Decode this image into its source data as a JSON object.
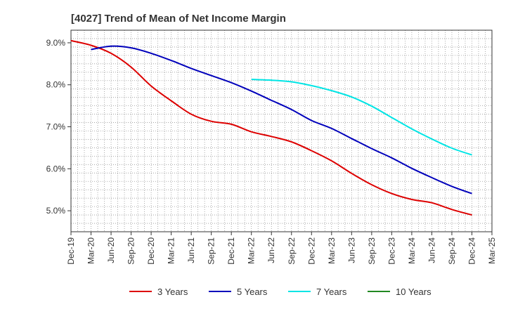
{
  "chart_data": {
    "type": "line",
    "title": "[4027]  Trend of Mean of Net Income Margin",
    "xlabel": "",
    "ylabel": "",
    "x_ticks": [
      "Dec-19",
      "Mar-20",
      "Jun-20",
      "Sep-20",
      "Dec-20",
      "Mar-21",
      "Jun-21",
      "Sep-21",
      "Dec-21",
      "Mar-22",
      "Jun-22",
      "Sep-22",
      "Dec-22",
      "Mar-23",
      "Jun-23",
      "Sep-23",
      "Dec-23",
      "Mar-24",
      "Jun-24",
      "Sep-24",
      "Dec-24",
      "Mar-25"
    ],
    "y_ticks": [
      "5.0%",
      "6.0%",
      "7.0%",
      "8.0%",
      "9.0%"
    ],
    "y_tick_values": [
      5.0,
      6.0,
      7.0,
      8.0,
      9.0
    ],
    "ylim": [
      4.5,
      9.3
    ],
    "grid": true,
    "legend_position": "bottom",
    "series": [
      {
        "name": "3 Years",
        "color": "#dd0000",
        "values": [
          [
            0,
            9.05
          ],
          [
            1,
            8.94
          ],
          [
            2,
            8.75
          ],
          [
            3,
            8.42
          ],
          [
            4,
            7.97
          ],
          [
            5,
            7.62
          ],
          [
            6,
            7.3
          ],
          [
            7,
            7.13
          ],
          [
            8,
            7.06
          ],
          [
            9,
            6.88
          ],
          [
            10,
            6.77
          ],
          [
            11,
            6.64
          ],
          [
            12,
            6.43
          ],
          [
            13,
            6.19
          ],
          [
            14,
            5.89
          ],
          [
            15,
            5.62
          ],
          [
            16,
            5.41
          ],
          [
            17,
            5.27
          ],
          [
            18,
            5.19
          ],
          [
            19,
            5.03
          ],
          [
            20,
            4.9
          ]
        ]
      },
      {
        "name": "5 Years",
        "color": "#0000bb",
        "values": [
          [
            1,
            8.84
          ],
          [
            2,
            8.92
          ],
          [
            3,
            8.88
          ],
          [
            4,
            8.75
          ],
          [
            5,
            8.58
          ],
          [
            6,
            8.39
          ],
          [
            7,
            8.22
          ],
          [
            8,
            8.05
          ],
          [
            9,
            7.85
          ],
          [
            10,
            7.63
          ],
          [
            11,
            7.41
          ],
          [
            12,
            7.15
          ],
          [
            13,
            6.96
          ],
          [
            14,
            6.72
          ],
          [
            15,
            6.48
          ],
          [
            16,
            6.26
          ],
          [
            17,
            6.01
          ],
          [
            18,
            5.79
          ],
          [
            19,
            5.58
          ],
          [
            20,
            5.41
          ]
        ]
      },
      {
        "name": "7 Years",
        "color": "#00e5e5",
        "values": [
          [
            9,
            8.13
          ],
          [
            10,
            8.11
          ],
          [
            11,
            8.07
          ],
          [
            12,
            7.98
          ],
          [
            13,
            7.86
          ],
          [
            14,
            7.71
          ],
          [
            15,
            7.49
          ],
          [
            16,
            7.22
          ],
          [
            17,
            6.95
          ],
          [
            18,
            6.71
          ],
          [
            19,
            6.49
          ],
          [
            20,
            6.33
          ]
        ]
      },
      {
        "name": "10 Years",
        "color": "#228822",
        "values": []
      }
    ]
  }
}
